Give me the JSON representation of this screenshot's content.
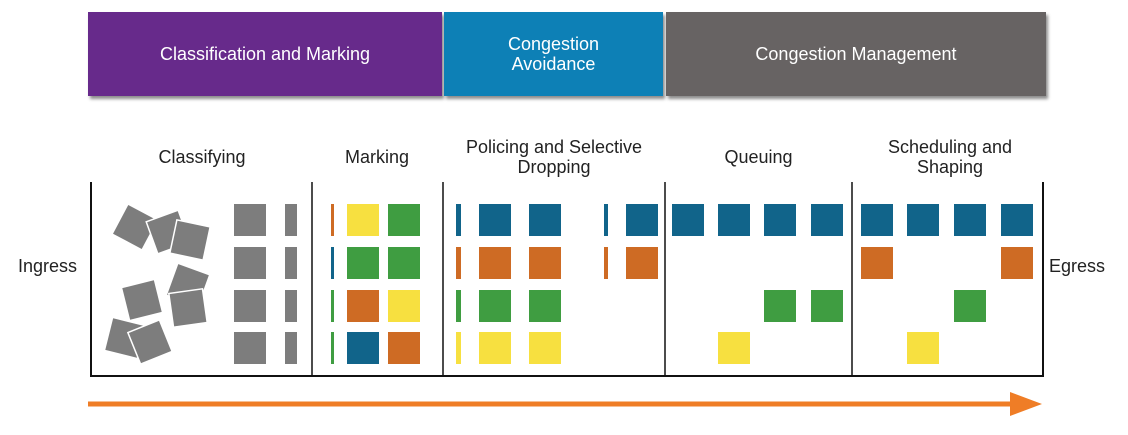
{
  "colors": {
    "purple": "#672a8b",
    "cyan": "#0d80b6",
    "gray_band": "#676363",
    "blue": "#11648a",
    "green": "#3f9d41",
    "orange": "#ce6b24",
    "yellow": "#f7e040",
    "gray": "#7d7d7d",
    "arrow": "#ef7d26"
  },
  "bands": [
    {
      "label": "Classification and Marking",
      "color": "#672a8b"
    },
    {
      "label": "Congestion\nAvoidance",
      "color": "#0d80b6"
    },
    {
      "label": "Congestion Management",
      "color": "#676363"
    }
  ],
  "stages": [
    {
      "title": "Classifying"
    },
    {
      "title": "Marking"
    },
    {
      "title": "Policing and Selective\nDropping"
    },
    {
      "title": "Queuing"
    },
    {
      "title": "Scheduling and\nShaping"
    }
  ],
  "ingress_label": "Ingress",
  "egress_label": "Egress"
}
